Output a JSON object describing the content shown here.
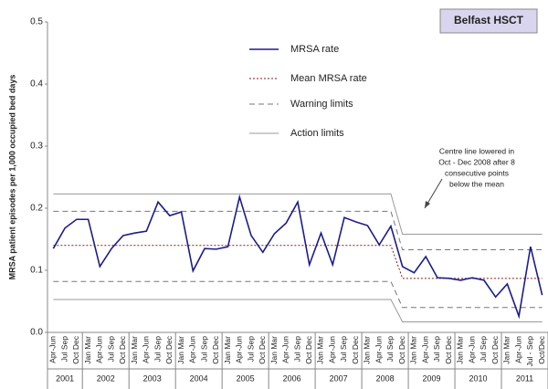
{
  "chart_data": {
    "type": "line",
    "badge": "Belfast HSCT",
    "ylabel": "MRSA patient episodes per 1,000 occupied bed days",
    "ylim": [
      0,
      0.5
    ],
    "yticks": [
      {
        "value": 0,
        "label": "0.0"
      },
      0.1,
      0.2,
      0.3,
      0.4,
      0.5
    ],
    "categories": [
      "Apr-Jun",
      "Jul Sep",
      "Oct Dec",
      "Jan Mar",
      "Apr-Jun",
      "Jul Sep",
      "Oct Dec",
      "Jan Mar",
      "Apr-Jun",
      "Jul Sep",
      "Oct Dec",
      "Jan Mar",
      "Apr-Jun",
      "Jul Sep",
      "Oct Dec",
      "Jan Mar",
      "Apr-Jun",
      "Jul Sep",
      "Oct Dec",
      "Jan Mar",
      "Apr-Jun",
      "Jul Sep",
      "Oct Dec",
      "Jan Mar",
      "Apr-Jun",
      "Jul Sep",
      "Oct Dec",
      "Jan Mar",
      "Apr-Jun",
      "Jul Sep",
      "Oct Dec",
      "Jan Mar",
      "Apr-Jun",
      "Jul Sep",
      "Oct Dec",
      "Jan Mar",
      "Apr-Jun",
      "Jul Sep",
      "Oct Dec",
      "Jan Mar",
      "Apr-Jun",
      "Jul - Sep",
      "Oct/Dec"
    ],
    "years": [
      "2001",
      "2002",
      "2003",
      "2004",
      "2005",
      "2006",
      "2007",
      "2008",
      "2009",
      "2010",
      "2011"
    ],
    "series": [
      {
        "name": "MRSA rate",
        "color": "#1c1c8c",
        "style": "solid",
        "values": [
          0.135,
          0.168,
          0.182,
          0.182,
          0.106,
          0.135,
          0.156,
          0.16,
          0.163,
          0.21,
          0.188,
          0.194,
          0.099,
          0.135,
          0.134,
          0.138,
          0.218,
          0.156,
          0.129,
          0.159,
          0.176,
          0.21,
          0.109,
          0.16,
          0.109,
          0.185,
          0.178,
          0.172,
          0.141,
          0.171,
          0.106,
          0.096,
          0.122,
          0.088,
          0.087,
          0.084,
          0.088,
          0.084,
          0.057,
          0.078,
          0.026,
          0.138,
          0.06
        ]
      },
      {
        "name": "Mean MRSA rate",
        "color": "#8b1a1a",
        "style": "dotted",
        "values": [
          0.14,
          0.14,
          0.14,
          0.14,
          0.14,
          0.14,
          0.14,
          0.14,
          0.14,
          0.14,
          0.14,
          0.14,
          0.14,
          0.14,
          0.14,
          0.14,
          0.14,
          0.14,
          0.14,
          0.14,
          0.14,
          0.14,
          0.14,
          0.14,
          0.14,
          0.14,
          0.14,
          0.14,
          0.14,
          0.14,
          0.087,
          0.087,
          0.087,
          0.087,
          0.087,
          0.087,
          0.087,
          0.087,
          0.087,
          0.087,
          0.087,
          0.087,
          0.087
        ]
      },
      {
        "name": "Warning limits",
        "color": "#777777",
        "style": "dashed",
        "values": [
          0.195,
          0.195,
          0.195,
          0.195,
          0.195,
          0.195,
          0.195,
          0.195,
          0.195,
          0.195,
          0.195,
          0.195,
          0.195,
          0.195,
          0.195,
          0.195,
          0.195,
          0.195,
          0.195,
          0.195,
          0.195,
          0.195,
          0.195,
          0.195,
          0.195,
          0.195,
          0.195,
          0.195,
          0.195,
          0.195,
          0.133,
          0.133,
          0.133,
          0.133,
          0.133,
          0.133,
          0.133,
          0.133,
          0.133,
          0.133,
          0.133,
          0.133,
          0.133
        ],
        "lower": [
          0.082,
          0.082,
          0.082,
          0.082,
          0.082,
          0.082,
          0.082,
          0.082,
          0.082,
          0.082,
          0.082,
          0.082,
          0.082,
          0.082,
          0.082,
          0.082,
          0.082,
          0.082,
          0.082,
          0.082,
          0.082,
          0.082,
          0.082,
          0.082,
          0.082,
          0.082,
          0.082,
          0.082,
          0.082,
          0.082,
          0.04,
          0.04,
          0.04,
          0.04,
          0.04,
          0.04,
          0.04,
          0.04,
          0.04,
          0.04,
          0.04,
          0.04,
          0.04
        ]
      },
      {
        "name": "Action limits",
        "color": "#999999",
        "style": "solid",
        "values": [
          0.223,
          0.223,
          0.223,
          0.223,
          0.223,
          0.223,
          0.223,
          0.223,
          0.223,
          0.223,
          0.223,
          0.223,
          0.223,
          0.223,
          0.223,
          0.223,
          0.223,
          0.223,
          0.223,
          0.223,
          0.223,
          0.223,
          0.223,
          0.223,
          0.223,
          0.223,
          0.223,
          0.223,
          0.223,
          0.223,
          0.158,
          0.158,
          0.158,
          0.158,
          0.158,
          0.158,
          0.158,
          0.158,
          0.158,
          0.158,
          0.158,
          0.158,
          0.158
        ],
        "lower": [
          0.053,
          0.053,
          0.053,
          0.053,
          0.053,
          0.053,
          0.053,
          0.053,
          0.053,
          0.053,
          0.053,
          0.053,
          0.053,
          0.053,
          0.053,
          0.053,
          0.053,
          0.053,
          0.053,
          0.053,
          0.053,
          0.053,
          0.053,
          0.053,
          0.053,
          0.053,
          0.053,
          0.053,
          0.053,
          0.053,
          0.017,
          0.017,
          0.017,
          0.017,
          0.017,
          0.017,
          0.017,
          0.017,
          0.017,
          0.017,
          0.017,
          0.017,
          0.017
        ]
      }
    ],
    "annotation": [
      "Centre line lowered in",
      "Oct - Dec 2008 after 8",
      "consecutive points",
      "below the mean"
    ]
  }
}
